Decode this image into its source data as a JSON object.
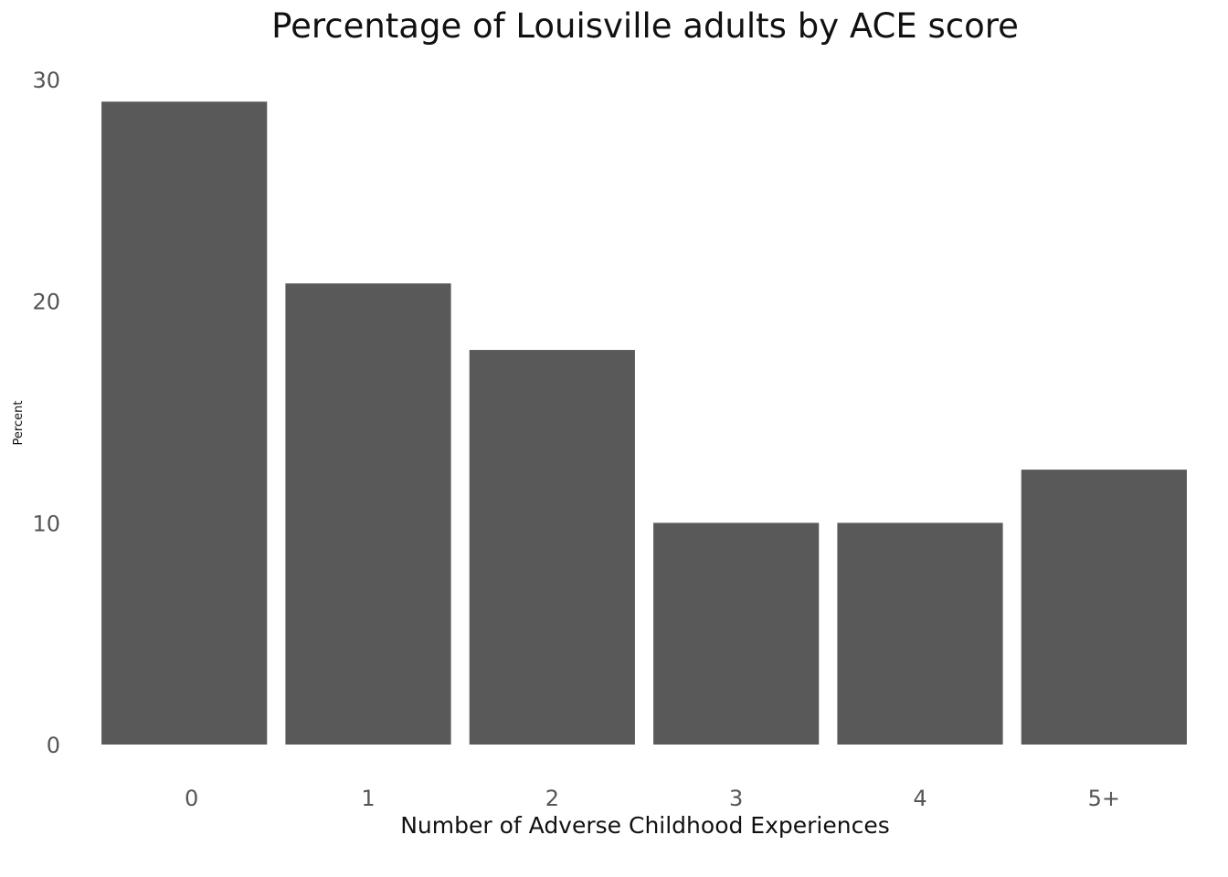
{
  "chart_data": {
    "type": "bar",
    "title": "Percentage of Louisville adults by ACE score",
    "xlabel": "Number of Adverse Childhood Experiences",
    "ylabel": "Percent",
    "categories": [
      "0",
      "1",
      "2",
      "3",
      "4",
      "5+"
    ],
    "values": [
      29.0,
      20.8,
      17.8,
      10.0,
      10.0,
      12.4
    ],
    "ylim": [
      0,
      30
    ],
    "yticks": [
      0,
      10,
      20,
      30
    ],
    "grid": false,
    "legend": "none",
    "bar_color": "#595959"
  }
}
